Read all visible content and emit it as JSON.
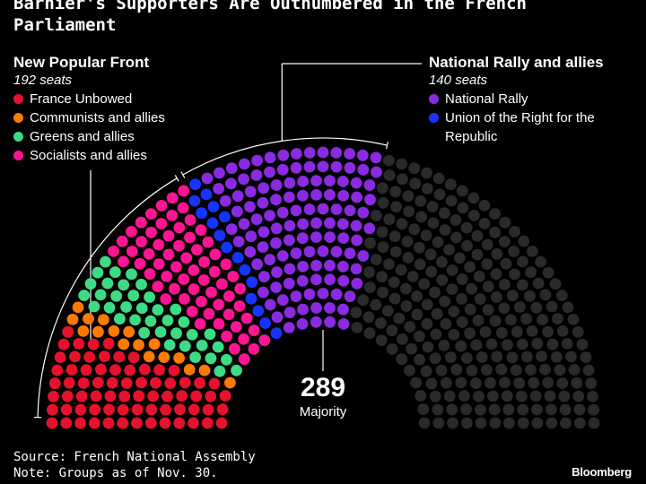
{
  "title": "Barnier's Supporters Are Outnumbered in the French Parliament",
  "source": "Source: French National Assembly",
  "note": "Note: Groups as of Nov. 30.",
  "brand": "Bloomberg",
  "majority": {
    "value": "289",
    "label": "Majority"
  },
  "groups": [
    {
      "name": "New Popular Front",
      "seats_label": "192 seats",
      "legend": [
        {
          "label": "France Unbowed",
          "color": "#e8112d"
        },
        {
          "label": "Communists and allies",
          "color": "#ff7a00"
        },
        {
          "label": "Greens and allies",
          "color": "#3ddc84"
        },
        {
          "label": "Socialists and allies",
          "color": "#ff1493"
        }
      ]
    },
    {
      "name": "National Rally and allies",
      "seats_label": "140 seats",
      "legend": [
        {
          "label": "National Rally",
          "color": "#8a2be2"
        },
        {
          "label": "Union of the Right for the Republic",
          "color": "#1733ff"
        }
      ]
    }
  ],
  "chart_data": {
    "type": "parliament",
    "total_seats": 577,
    "majority": 289,
    "series": [
      {
        "name": "France Unbowed",
        "value": 71,
        "color": "#e8112d"
      },
      {
        "name": "Communists and allies",
        "value": 17,
        "color": "#ff7a00"
      },
      {
        "name": "Greens and allies",
        "value": 38,
        "color": "#3ddc84"
      },
      {
        "name": "Socialists and allies",
        "value": 66,
        "color": "#ff1493"
      },
      {
        "name": "Union of the Right for the Republic",
        "value": 16,
        "color": "#1733ff"
      },
      {
        "name": "National Rally",
        "value": 124,
        "color": "#8a2be2"
      },
      {
        "name": "",
        "value": 245,
        "color": "#2a2a2a"
      }
    ]
  }
}
